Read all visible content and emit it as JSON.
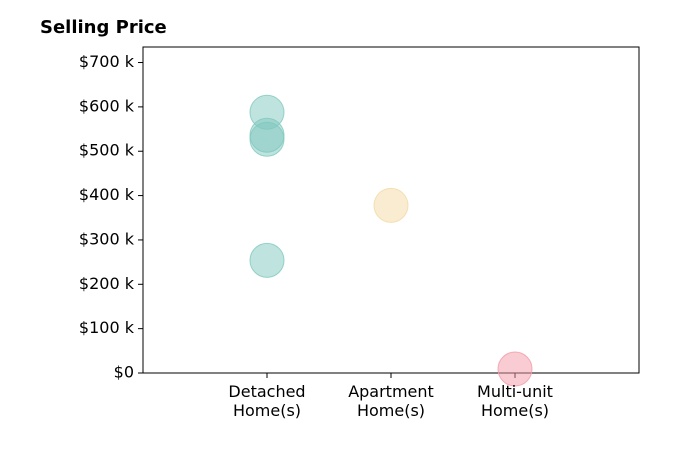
{
  "chart_data": {
    "type": "strip",
    "title": "Selling Price",
    "categories": [
      "Detached\nHome(s)",
      "Apartment\nHome(s)",
      "Multi-unit\nHome(s)"
    ],
    "colors": [
      "#7fc8be",
      "#f3d9a4",
      "#f29aa6"
    ],
    "values": [
      [
        588000,
        536000,
        527000,
        254000
      ],
      [
        378000
      ],
      [
        9000
      ]
    ],
    "ylim": [
      0,
      735000
    ],
    "yticks": [
      {
        "value": 0,
        "label": "$0"
      },
      {
        "value": 100000,
        "label": "$100 k"
      },
      {
        "value": 200000,
        "label": "$200 k"
      },
      {
        "value": 300000,
        "label": "$300 k"
      },
      {
        "value": 400000,
        "label": "$400 k"
      },
      {
        "value": 500000,
        "label": "$500 k"
      },
      {
        "value": 600000,
        "label": "$600 k"
      },
      {
        "value": 700000,
        "label": "$700 k"
      }
    ]
  }
}
